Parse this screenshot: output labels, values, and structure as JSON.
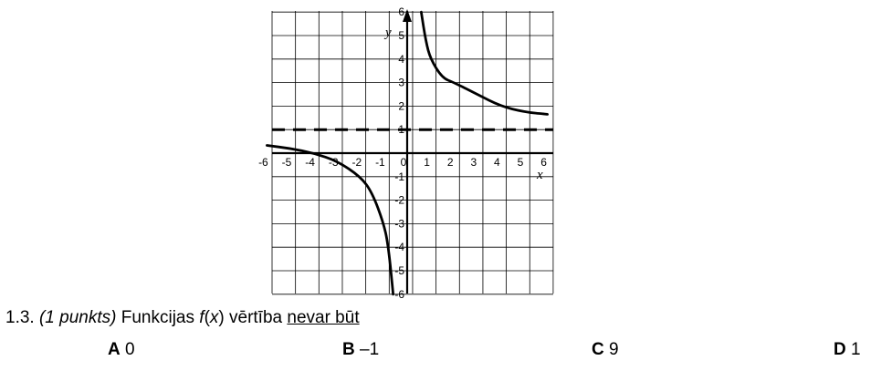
{
  "chart_data": {
    "type": "line",
    "xlabel": "x",
    "ylabel": "y",
    "xlim": [
      -6,
      6
    ],
    "ylim": [
      -6,
      6
    ],
    "grid": true,
    "x_ticks": [
      -6,
      -5,
      -4,
      -3,
      -2,
      -1,
      0,
      1,
      2,
      3,
      4,
      5,
      6
    ],
    "y_ticks": [
      -6,
      -5,
      -4,
      -3,
      -2,
      -1,
      1,
      2,
      3,
      4,
      5,
      6
    ],
    "x_tick_labels": [
      "-6",
      "-5",
      "-4",
      "-3",
      "-2",
      "-1",
      "0",
      "1",
      "2",
      "3",
      "4",
      "5",
      "6"
    ],
    "y_tick_labels": [
      "-6",
      "-5",
      "-4",
      "-3",
      "-2",
      "-1",
      "1",
      "2",
      "3",
      "4",
      "5",
      "6"
    ],
    "series": [
      {
        "x": [
          -6,
          -5,
          -4,
          -3,
          -2,
          -1.5,
          -1,
          -0.8,
          -0.6
        ],
        "y": [
          0.33,
          0.2,
          0,
          -0.33,
          -1,
          -1.67,
          -3,
          -4,
          -6
        ]
      },
      {
        "x": [
          0.6,
          0.8,
          1,
          1.5,
          2,
          3,
          4,
          5,
          6
        ],
        "y": [
          6,
          4.75,
          4,
          3.2,
          3,
          2.5,
          2,
          1.75,
          1.65
        ]
      }
    ],
    "asymptote_y": 1
  },
  "question": {
    "number": "1.3.",
    "points": "(1 punkts)",
    "text_before": "Funkcijas",
    "func": "f",
    "arg_open": "(",
    "arg": "x",
    "arg_close": ")",
    "text_after": "vērtība",
    "emphasis": "nevar būt"
  },
  "options": [
    {
      "letter": "A",
      "value": "0"
    },
    {
      "letter": "B",
      "value": "–1"
    },
    {
      "letter": "C",
      "value": "9"
    },
    {
      "letter": "D",
      "value": "1"
    }
  ]
}
